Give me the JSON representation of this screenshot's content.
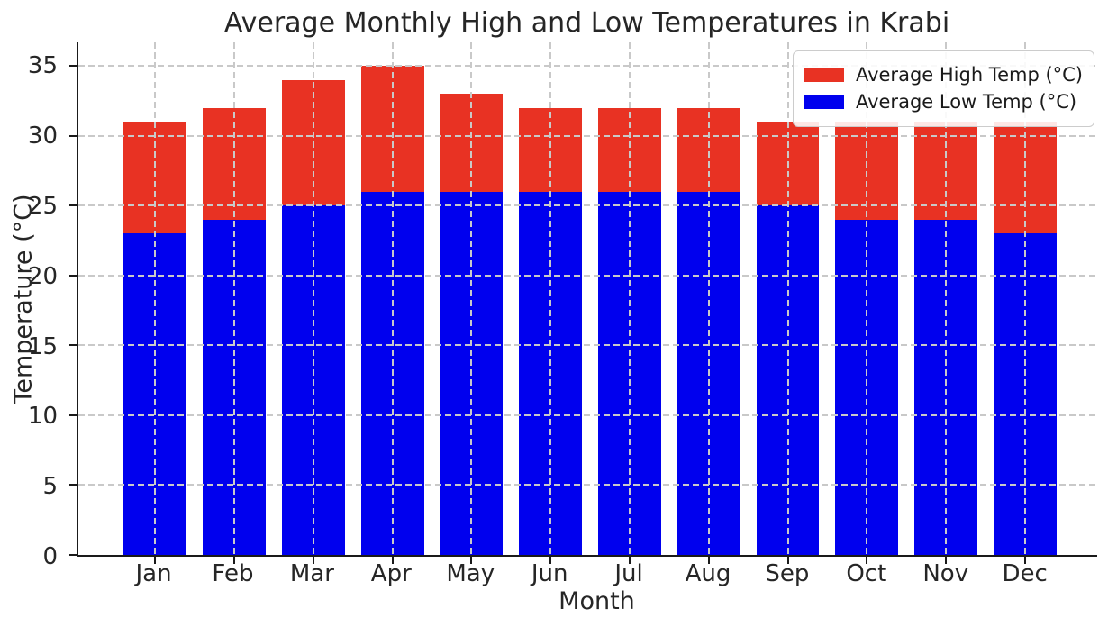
{
  "chart_data": {
    "type": "bar",
    "mode": "overlaid",
    "title": "Average Monthly High and Low Temperatures in Krabi",
    "xlabel": "Month",
    "ylabel": "Temperature (°C)",
    "categories": [
      "Jan",
      "Feb",
      "Mar",
      "Apr",
      "May",
      "Jun",
      "Jul",
      "Aug",
      "Sep",
      "Oct",
      "Nov",
      "Dec"
    ],
    "series": [
      {
        "name": "Average High Temp (°C)",
        "color": "#e83223",
        "values": [
          31,
          32,
          34,
          35,
          33,
          32,
          32,
          32,
          31,
          31,
          31,
          31
        ]
      },
      {
        "name": "Average Low Temp (°C)",
        "color": "#0000ee",
        "values": [
          23,
          24,
          25,
          26,
          26,
          26,
          26,
          26,
          25,
          24,
          24,
          23
        ]
      }
    ],
    "ylim": [
      0,
      36.7
    ],
    "yticks": [
      0,
      5,
      10,
      15,
      20,
      25,
      30,
      35
    ],
    "grid": true,
    "grid_style": "dashed",
    "grid_on_top": true,
    "grid_color": "#c9c9c9",
    "axis_color": "#1a1a1a",
    "text_color": "#262626",
    "background": "#ffffff",
    "legend_position": "upper right"
  }
}
